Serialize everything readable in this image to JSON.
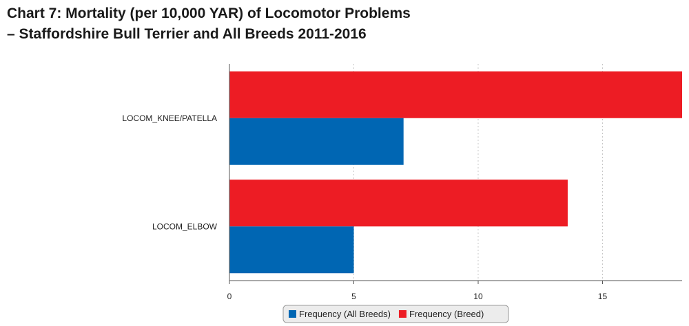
{
  "title": {
    "line1": "Chart 7: Mortality (per 10,000 YAR) of Locomotor Problems",
    "line2": " –  Staffordshire Bull Terrier and All Breeds 2011-2016"
  },
  "chart_data": {
    "type": "bar",
    "orientation": "horizontal",
    "categories": [
      "LOCOM_KNEE/PATELLA",
      "LOCOM_ELBOW"
    ],
    "series": [
      {
        "name": "Frequency (Breed)",
        "color": "#ed1c24",
        "values": [
          18.2,
          13.6
        ]
      },
      {
        "name": "Frequency (All Breeds)",
        "color": "#0066b3",
        "values": [
          7.0,
          5.0
        ]
      }
    ],
    "xlim": [
      0,
      18.2
    ],
    "xticks": [
      0,
      5,
      10,
      15
    ],
    "grid": true,
    "legend": {
      "position": "bottom-center",
      "items": [
        {
          "label": "Frequency (All Breeds)",
          "color": "#0066b3"
        },
        {
          "label": "Frequency (Breed)",
          "color": "#ed1c24"
        }
      ]
    },
    "xlabel": "",
    "ylabel": ""
  }
}
